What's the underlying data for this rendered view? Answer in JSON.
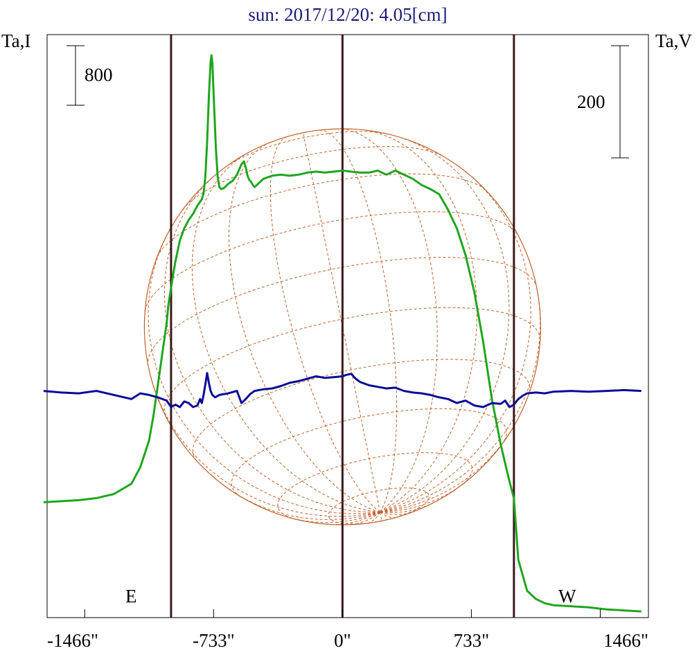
{
  "title": "sun: 2017/12/20: 4.05[cm]",
  "left_axis_label": "Ta,I",
  "right_axis_label": "Ta,V",
  "scale_bars": {
    "left_label": "800",
    "right_label": "200"
  },
  "limb_labels": {
    "east": "E",
    "west": "W"
  },
  "colors": {
    "title": "#1a1a7a",
    "intensity": "#1fa51f",
    "polarization": "#0a0a99",
    "vertical_lines": "#3a1a1a",
    "grid": "#c0602a",
    "axes": "#000000"
  },
  "chart_data": {
    "type": "line",
    "title": "sun: 2017/12/20: 4.05[cm]",
    "xlabel": "",
    "xlim": [
      -1680,
      1740
    ],
    "x_ticks": [
      -1466,
      -733,
      0,
      733,
      1466
    ],
    "x_tick_labels": [
      "-1466\"",
      "-733\"",
      "0\"",
      "733\"",
      "1466\""
    ],
    "solar_limb_arcsec": [
      -975,
      975
    ],
    "vertical_markers": [
      -975,
      0,
      975
    ],
    "series": [
      {
        "name": "Ta,I",
        "x": [
          -1700,
          -1600,
          -1500,
          -1400,
          -1300,
          -1200,
          -1150,
          -1100,
          -1075,
          -1050,
          -1025,
          -1000,
          -990,
          -975,
          -960,
          -950,
          -940,
          -925,
          -900,
          -875,
          -850,
          -825,
          -800,
          -790,
          -780,
          -770,
          -760,
          -750,
          -745,
          -740,
          -730,
          -720,
          -710,
          -700,
          -690,
          -675,
          -650,
          -625,
          -600,
          -575,
          -560,
          -550,
          -545,
          -540,
          -530,
          -520,
          -510,
          -500,
          -450,
          -400,
          -350,
          -300,
          -250,
          -200,
          -150,
          -100,
          -50,
          0,
          50,
          100,
          150,
          200,
          250,
          300,
          350,
          400,
          450,
          500,
          550,
          600,
          650,
          700,
          750,
          800,
          850,
          900,
          950,
          975,
          1000,
          1050,
          1100,
          1150,
          1200,
          1300,
          1400,
          1500,
          1600,
          1700
        ],
        "y": [
          0,
          5,
          10,
          20,
          40,
          90,
          170,
          300,
          420,
          570,
          720,
          870,
          960,
          1040,
          1120,
          1170,
          1210,
          1270,
          1330,
          1370,
          1400,
          1440,
          1470,
          1500,
          1580,
          1750,
          1970,
          2140,
          2170,
          2130,
          1920,
          1720,
          1580,
          1530,
          1520,
          1525,
          1545,
          1560,
          1590,
          1640,
          1655,
          1625,
          1605,
          1585,
          1565,
          1555,
          1540,
          1530,
          1570,
          1585,
          1590,
          1585,
          1590,
          1600,
          1605,
          1600,
          1605,
          1610,
          1605,
          1600,
          1600,
          1610,
          1590,
          1610,
          1590,
          1570,
          1540,
          1520,
          1495,
          1420,
          1330,
          1200,
          1020,
          780,
          500,
          280,
          100,
          20,
          -280,
          -430,
          -470,
          -490,
          -500,
          -505,
          -510,
          -520,
          -525,
          -530
        ],
        "y_range": [
          -560,
          2270
        ]
      },
      {
        "name": "Ta,V",
        "x": [
          -1700,
          -1600,
          -1500,
          -1400,
          -1300,
          -1200,
          -1150,
          -1100,
          -1050,
          -1000,
          -975,
          -950,
          -925,
          -900,
          -875,
          -850,
          -825,
          -810,
          -800,
          -790,
          -780,
          -770,
          -760,
          -750,
          -740,
          -725,
          -700,
          -650,
          -600,
          -575,
          -550,
          -525,
          -500,
          -450,
          -400,
          -350,
          -300,
          -250,
          -200,
          -150,
          -100,
          -50,
          0,
          25,
          50,
          75,
          100,
          150,
          200,
          250,
          300,
          350,
          400,
          450,
          500,
          550,
          600,
          650,
          700,
          750,
          800,
          850,
          900,
          925,
          950,
          975,
          1000,
          1025,
          1050,
          1100,
          1150,
          1200,
          1300,
          1400,
          1500,
          1600,
          1700
        ],
        "y": [
          0,
          -2,
          -3,
          0,
          -5,
          -10,
          -3,
          -5,
          -8,
          -12,
          -20,
          -17,
          -20,
          -13,
          -15,
          -20,
          -18,
          -10,
          -15,
          -5,
          8,
          22,
          10,
          0,
          -5,
          -8,
          -5,
          -3,
          0,
          -15,
          -10,
          -4,
          0,
          2,
          3,
          6,
          10,
          12,
          15,
          18,
          16,
          17,
          18,
          20,
          21,
          15,
          11,
          7,
          5,
          3,
          4,
          0,
          -2,
          -3,
          -5,
          -8,
          -10,
          -15,
          -12,
          -18,
          -20,
          -15,
          -16,
          -12,
          -20,
          -17,
          -10,
          -6,
          -3,
          -2,
          -3,
          -1,
          0,
          -1,
          0,
          1,
          0
        ],
        "y_range": [
          -280,
          440
        ]
      }
    ]
  }
}
